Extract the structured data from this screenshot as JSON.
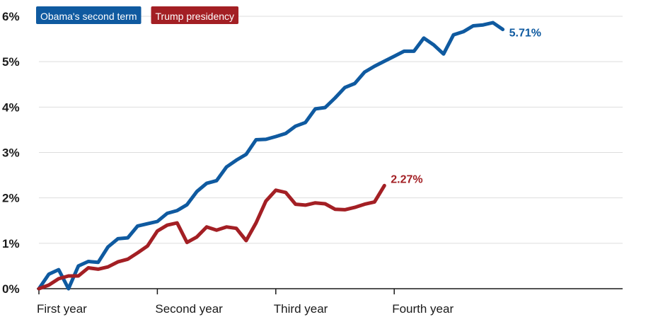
{
  "chart_data": {
    "type": "line",
    "title": "",
    "xlabel": "",
    "ylabel": "",
    "ylim": [
      0,
      6
    ],
    "yticks": [
      "0%",
      "1%",
      "2%",
      "3%",
      "4%",
      "5%",
      "6%"
    ],
    "x_labels": [
      {
        "x": 0,
        "label": "First year"
      },
      {
        "x": 12,
        "label": "Second year"
      },
      {
        "x": 24,
        "label": "Third year"
      },
      {
        "x": 36,
        "label": "Fourth year"
      }
    ],
    "grid": true,
    "legend": "top-left",
    "series": [
      {
        "name": "Obama's second term",
        "color": "#0f5aa0",
        "end_label": "5.71%",
        "values": [
          0,
          0.32,
          0.42,
          0.0,
          0.5,
          0.6,
          0.58,
          0.92,
          1.1,
          1.12,
          1.38,
          1.43,
          1.48,
          1.66,
          1.72,
          1.85,
          2.14,
          2.32,
          2.38,
          2.68,
          2.83,
          2.96,
          3.28,
          3.29,
          3.35,
          3.42,
          3.58,
          3.66,
          3.96,
          3.99,
          4.2,
          4.43,
          4.52,
          4.77,
          4.9,
          5.01,
          5.12,
          5.23,
          5.23,
          5.52,
          5.37,
          5.17,
          5.59,
          5.66,
          5.79,
          5.81,
          5.86,
          5.71
        ]
      },
      {
        "name": "Trump presidency",
        "color": "#a31f24",
        "end_label": "2.27%",
        "values": [
          0,
          0.08,
          0.22,
          0.28,
          0.28,
          0.46,
          0.43,
          0.48,
          0.59,
          0.65,
          0.79,
          0.94,
          1.27,
          1.4,
          1.45,
          1.02,
          1.14,
          1.36,
          1.29,
          1.36,
          1.33,
          1.06,
          1.45,
          1.93,
          2.17,
          2.12,
          1.86,
          1.84,
          1.89,
          1.87,
          1.75,
          1.74,
          1.79,
          1.86,
          1.91,
          2.27
        ]
      }
    ]
  }
}
